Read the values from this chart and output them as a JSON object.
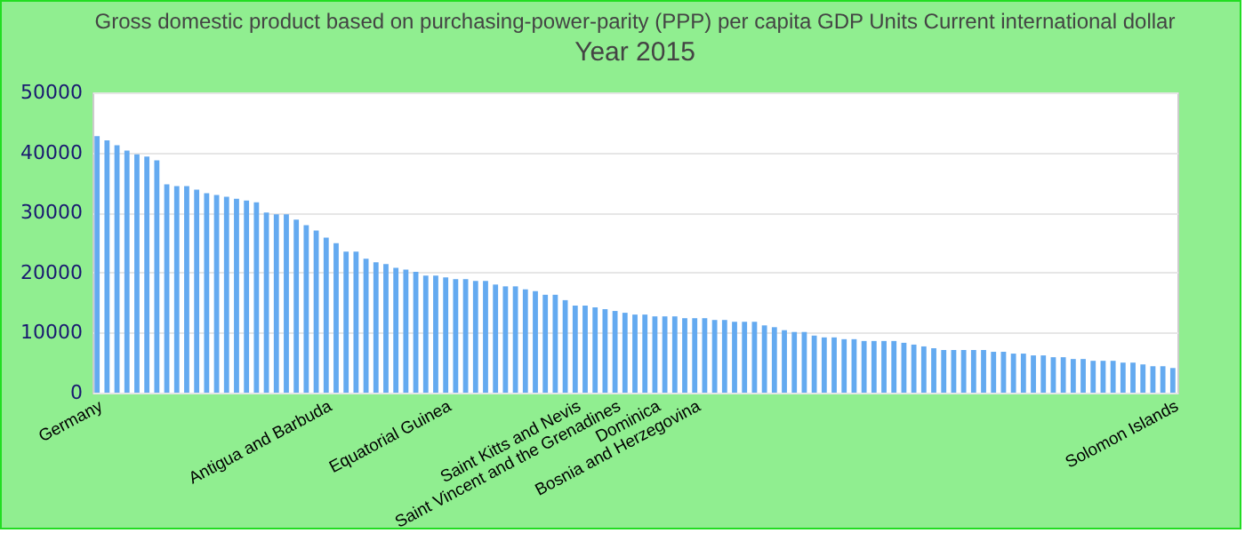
{
  "chart_data": {
    "type": "bar",
    "title": "Gross domestic product based on purchasing-power-parity (PPP) per capita GDP Units Current international dollar",
    "subtitle": "Year 2015",
    "categories": [
      "Germany",
      null,
      null,
      null,
      null,
      null,
      null,
      null,
      null,
      null,
      null,
      null,
      null,
      null,
      null,
      null,
      null,
      null,
      null,
      null,
      null,
      null,
      null,
      "Antigua and Barbuda",
      null,
      null,
      null,
      null,
      null,
      null,
      null,
      null,
      null,
      null,
      null,
      "Equatorial Guinea",
      null,
      null,
      null,
      null,
      null,
      null,
      null,
      null,
      null,
      null,
      null,
      null,
      "Saint Kitts and Nevis",
      null,
      null,
      null,
      "Saint Vincent and the Grenadines",
      null,
      null,
      null,
      "Dominica",
      null,
      null,
      null,
      "Bosnia and Herzegovina",
      null,
      null,
      null,
      null,
      null,
      null,
      null,
      null,
      null,
      null,
      null,
      null,
      null,
      null,
      null,
      null,
      null,
      null,
      null,
      null,
      null,
      null,
      null,
      null,
      null,
      null,
      null,
      null,
      null,
      null,
      null,
      null,
      null,
      null,
      null,
      null,
      null,
      null,
      null,
      null,
      null,
      null,
      null,
      null,
      null,
      null,
      null,
      "Solomon Islands"
    ],
    "values": [
      42700,
      42000,
      41200,
      40300,
      39700,
      39300,
      38700,
      34700,
      34400,
      34400,
      33800,
      33200,
      32900,
      32600,
      32300,
      32000,
      31700,
      30000,
      29700,
      29700,
      28800,
      27900,
      27000,
      25800,
      24900,
      23500,
      23500,
      22300,
      21700,
      21400,
      20800,
      20500,
      20100,
      19500,
      19500,
      19200,
      18900,
      18900,
      18600,
      18600,
      18000,
      17700,
      17700,
      17200,
      16900,
      16300,
      16300,
      15400,
      14500,
      14500,
      14200,
      13900,
      13600,
      13300,
      13000,
      13000,
      12700,
      12700,
      12700,
      12400,
      12400,
      12400,
      12100,
      12100,
      11800,
      11800,
      11800,
      11200,
      10900,
      10400,
      10100,
      10100,
      9500,
      9200,
      9200,
      8900,
      8900,
      8600,
      8600,
      8600,
      8600,
      8300,
      8000,
      7700,
      7400,
      7100,
      7100,
      7100,
      7100,
      7100,
      6800,
      6800,
      6500,
      6500,
      6200,
      6200,
      5900,
      5900,
      5600,
      5600,
      5300,
      5300,
      5300,
      5000,
      5000,
      4700,
      4400,
      4400,
      4100
    ],
    "color": "#64aaf0",
    "ylim": [
      0,
      50000
    ],
    "yticks": [
      0,
      10000,
      20000,
      30000,
      40000,
      50000
    ],
    "grid": "y"
  }
}
